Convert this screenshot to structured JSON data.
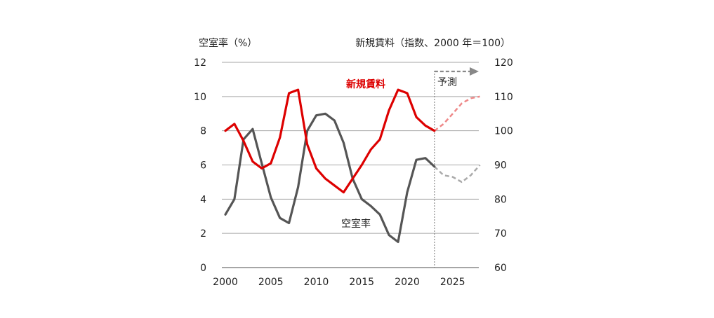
{
  "chart_data": {
    "type": "line",
    "left_axis_title": "空室率（%）",
    "right_axis_title": "新規賃料（指数、2000 年＝100）",
    "forecast_label": "予測",
    "forecast_start_year": 2023,
    "x_ticks": [
      "2000",
      "2005",
      "2010",
      "2015",
      "2020",
      "2025"
    ],
    "x_range": [
      2000,
      2028.5
    ],
    "y_left": {
      "range": [
        0,
        12
      ],
      "ticks": [
        "0",
        "2",
        "4",
        "6",
        "8",
        "10",
        "12"
      ]
    },
    "y_right": {
      "range": [
        60,
        120
      ],
      "ticks": [
        "60",
        "70",
        "80",
        "90",
        "100",
        "110",
        "120"
      ]
    },
    "grid": true,
    "series": [
      {
        "name": "新規賃料",
        "axis": "right",
        "color": "#dd0000",
        "forecast_color": "#ee8888",
        "actual": [
          [
            2000,
            100
          ],
          [
            2001,
            102
          ],
          [
            2002,
            97
          ],
          [
            2003,
            91
          ],
          [
            2004,
            89
          ],
          [
            2005,
            90.5
          ],
          [
            2006,
            98
          ],
          [
            2007,
            111
          ],
          [
            2008,
            112
          ],
          [
            2009,
            96
          ],
          [
            2010,
            89
          ],
          [
            2011,
            86
          ],
          [
            2012,
            84
          ],
          [
            2013,
            82
          ],
          [
            2014,
            86
          ],
          [
            2015,
            90
          ],
          [
            2016,
            94.5
          ],
          [
            2017,
            97.5
          ],
          [
            2018,
            106
          ],
          [
            2019,
            112
          ],
          [
            2020,
            111
          ],
          [
            2021,
            104
          ],
          [
            2022,
            101.5
          ],
          [
            2023,
            100
          ]
        ],
        "forecast": [
          [
            2023,
            100
          ],
          [
            2024,
            102
          ],
          [
            2025,
            105
          ],
          [
            2026,
            108
          ],
          [
            2027,
            109.5
          ],
          [
            2028,
            110
          ]
        ]
      },
      {
        "name": "空室率",
        "axis": "left",
        "color": "#555555",
        "forecast_color": "#aaaaaa",
        "actual": [
          [
            2000,
            3.1
          ],
          [
            2001,
            4
          ],
          [
            2002,
            7.5
          ],
          [
            2003,
            8.1
          ],
          [
            2004,
            6.1
          ],
          [
            2005,
            4.1
          ],
          [
            2006,
            2.9
          ],
          [
            2007,
            2.6
          ],
          [
            2008,
            4.7
          ],
          [
            2009,
            8
          ],
          [
            2010,
            8.9
          ],
          [
            2011,
            9
          ],
          [
            2012,
            8.6
          ],
          [
            2013,
            7.3
          ],
          [
            2014,
            5.2
          ],
          [
            2015,
            4
          ],
          [
            2016,
            3.6
          ],
          [
            2017,
            3.1
          ],
          [
            2018,
            1.9
          ],
          [
            2019,
            1.5
          ],
          [
            2020,
            4.4
          ],
          [
            2021,
            6.3
          ],
          [
            2022,
            6.4
          ],
          [
            2023,
            5.9
          ]
        ],
        "forecast": [
          [
            2023,
            5.9
          ],
          [
            2024,
            5.4
          ],
          [
            2025,
            5.3
          ],
          [
            2026,
            5
          ],
          [
            2027,
            5.4
          ],
          [
            2028,
            6
          ]
        ]
      }
    ]
  }
}
